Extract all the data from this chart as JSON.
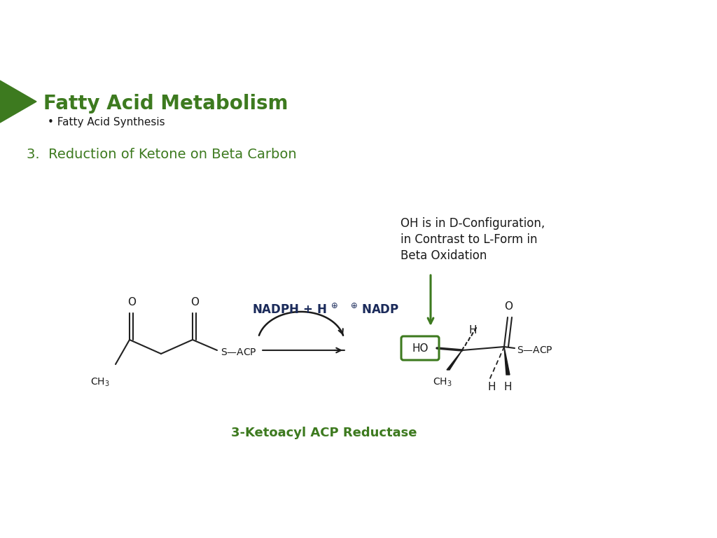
{
  "bg_color": "#ffffff",
  "green_color": "#3d7a1f",
  "green_dark": "#2d6a10",
  "black_color": "#1a1a1a",
  "navy_color": "#1a2a5a",
  "title": "Fatty Acid Metabolism",
  "subtitle": "• Fatty Acid Synthesis",
  "step": "3.  Reduction of Ketone on Beta Carbon",
  "annotation_line1": "OH is in D-Configuration,",
  "annotation_line2": "in Contrast to L-Form in",
  "annotation_line3": "Beta Oxidation",
  "enzyme": "3-Ketoacyl ACP Reductase",
  "title_fontsize": 20,
  "subtitle_fontsize": 11,
  "step_fontsize": 14,
  "annotation_fontsize": 12,
  "enzyme_fontsize": 13,
  "chem_fontsize": 10,
  "nadph_fontsize": 12
}
